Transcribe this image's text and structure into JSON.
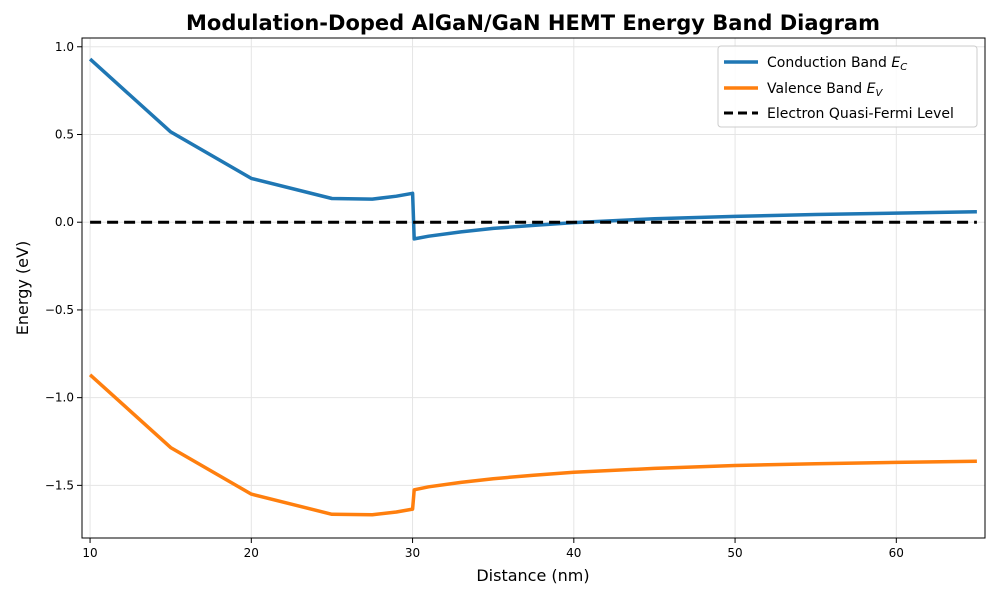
{
  "chart_data": {
    "type": "line",
    "title": "Modulation-Doped AlGaN/GaN HEMT Energy Band Diagram",
    "xlabel": "Distance (nm)",
    "ylabel": "Energy (eV)",
    "xlim": [
      9.5,
      65.5
    ],
    "ylim": [
      -1.8,
      1.05
    ],
    "xticks": [
      10,
      20,
      30,
      40,
      50,
      60
    ],
    "yticks": [
      1.0,
      0.5,
      0.0,
      -0.5,
      -1.0,
      -1.5
    ],
    "ytick_labels": [
      "1.0",
      "0.5",
      "0.0",
      "−0.5",
      "−1.0",
      "−1.5"
    ],
    "grid": true,
    "legend_position": "top-right",
    "series": [
      {
        "name": "Conduction Band E_C",
        "legend_main": "Conduction Band ",
        "legend_sym": "E",
        "legend_sub": "C",
        "color": "#1f77b4",
        "style": "solid",
        "x": [
          10,
          15,
          20,
          25,
          27.5,
          29,
          30,
          30.1,
          31,
          33,
          35,
          37.5,
          40,
          45,
          50,
          55,
          60,
          65
        ],
        "y": [
          0.93,
          0.515,
          0.25,
          0.135,
          0.132,
          0.148,
          0.165,
          -0.095,
          -0.08,
          -0.055,
          -0.035,
          -0.018,
          -0.002,
          0.02,
          0.033,
          0.044,
          0.052,
          0.06
        ]
      },
      {
        "name": "Valence Band E_V",
        "legend_main": "Valence Band ",
        "legend_sym": "E",
        "legend_sub": "V",
        "color": "#ff7f0e",
        "style": "solid",
        "x": [
          10,
          15,
          20,
          25,
          27.5,
          29,
          30,
          30.1,
          31,
          33,
          35,
          37.5,
          40,
          45,
          50,
          55,
          60,
          65
        ],
        "y": [
          -0.87,
          -1.285,
          -1.55,
          -1.665,
          -1.668,
          -1.652,
          -1.635,
          -1.525,
          -1.508,
          -1.483,
          -1.462,
          -1.442,
          -1.425,
          -1.403,
          -1.387,
          -1.377,
          -1.369,
          -1.362
        ]
      },
      {
        "name": "Electron Quasi-Fermi Level",
        "legend_main": "Electron Quasi-Fermi Level",
        "legend_sym": "",
        "legend_sub": "",
        "color": "#000000",
        "style": "dashed",
        "x": [
          10,
          65
        ],
        "y": [
          0,
          0
        ]
      }
    ]
  }
}
